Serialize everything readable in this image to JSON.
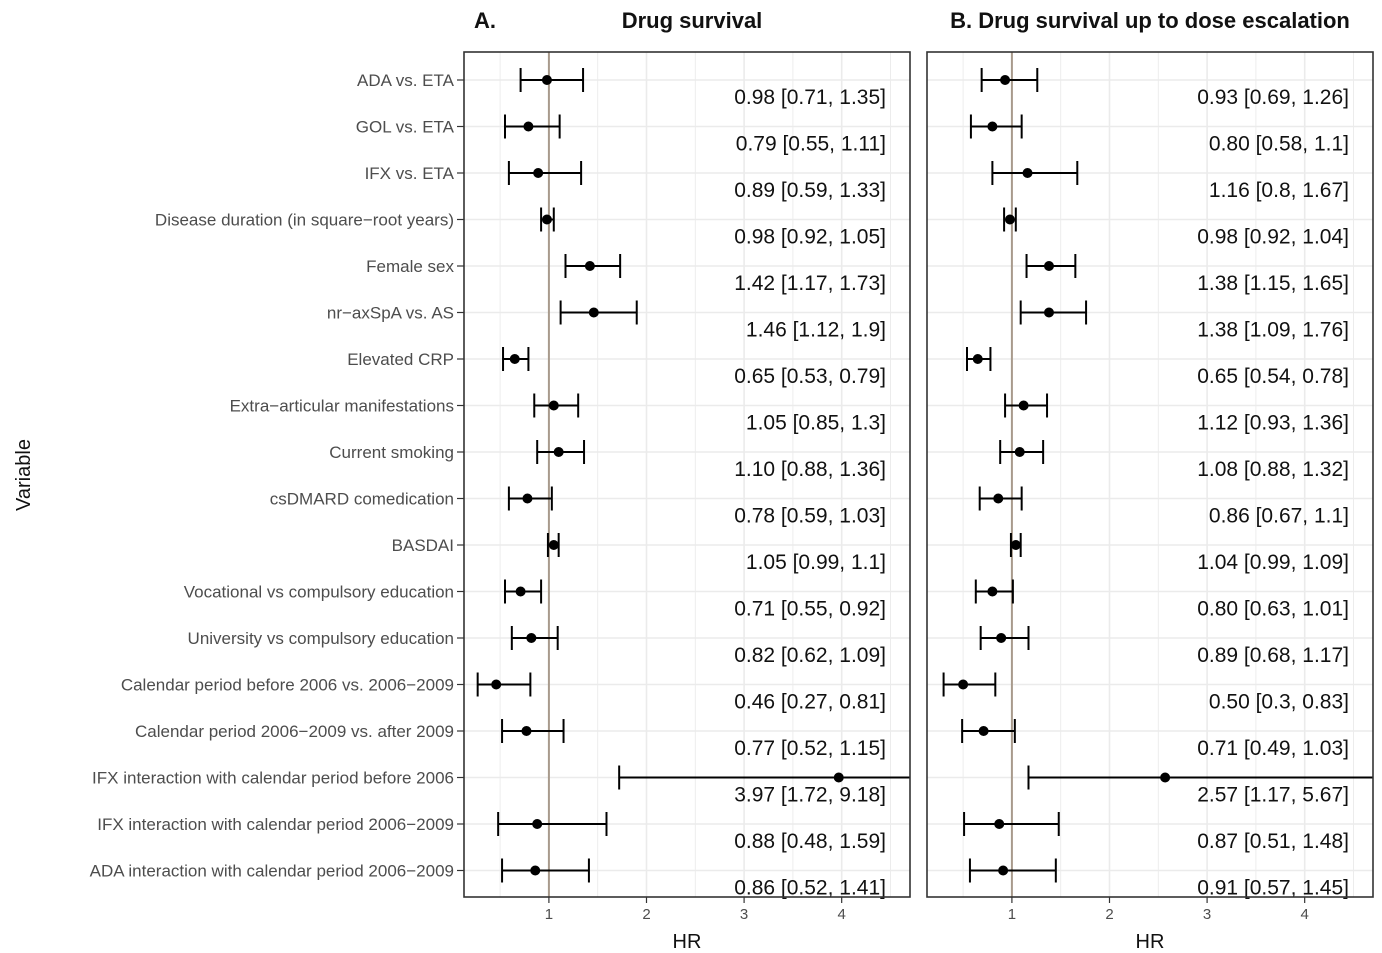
{
  "chart_data": {
    "type": "forest",
    "ylabel": "Variable",
    "reference_line": 1,
    "variables": [
      "ADA vs. ETA",
      "GOL vs. ETA",
      "IFX vs. ETA",
      "Disease duration (in square−root years)",
      "Female sex",
      "nr−axSpA vs. AS",
      "Elevated CRP",
      "Extra−articular manifestations",
      "Current smoking",
      "csDMARD comedication",
      "BASDAI",
      "Vocational vs compulsory education",
      "University vs compulsory education",
      "Calendar period before 2006 vs. 2006−2009",
      "Calendar period 2006−2009 vs. after 2009",
      "IFX interaction with calendar period before 2006",
      "IFX interaction with calendar period 2006−2009",
      "ADA interaction with calendar period 2006−2009"
    ],
    "panels": [
      {
        "letter": "A.",
        "title": "Drug survival",
        "xlabel": "HR",
        "xticks": [
          1,
          2,
          3,
          4
        ],
        "xlim": [
          0.13,
          4.7
        ],
        "hr": [
          0.98,
          0.79,
          0.89,
          0.98,
          1.42,
          1.46,
          0.65,
          1.05,
          1.1,
          0.78,
          1.05,
          0.71,
          0.82,
          0.46,
          0.77,
          3.97,
          0.88,
          0.86
        ],
        "lower": [
          0.71,
          0.55,
          0.59,
          0.92,
          1.17,
          1.12,
          0.53,
          0.85,
          0.88,
          0.59,
          0.99,
          0.55,
          0.62,
          0.27,
          0.52,
          1.72,
          0.48,
          0.52
        ],
        "upper": [
          1.35,
          1.11,
          1.33,
          1.05,
          1.73,
          1.9,
          0.79,
          1.3,
          1.36,
          1.03,
          1.1,
          0.92,
          1.09,
          0.81,
          1.15,
          9.18,
          1.59,
          1.41
        ],
        "labels": [
          "0.98 [0.71, 1.35]",
          "0.79 [0.55, 1.11]",
          "0.89 [0.59, 1.33]",
          "0.98 [0.92, 1.05]",
          "1.42 [1.17, 1.73]",
          "1.46 [1.12, 1.9]",
          "0.65 [0.53, 0.79]",
          "1.05 [0.85, 1.3]",
          "1.10 [0.88, 1.36]",
          "0.78 [0.59, 1.03]",
          "1.05 [0.99, 1.1]",
          "0.71 [0.55, 0.92]",
          "0.82 [0.62, 1.09]",
          "0.46 [0.27, 0.81]",
          "0.77 [0.52, 1.15]",
          "3.97 [1.72, 9.18]",
          "0.88 [0.48, 1.59]",
          "0.86 [0.52, 1.41]"
        ]
      },
      {
        "letter": "",
        "title": "B. Drug survival up to dose escalation",
        "xlabel": "HR",
        "xticks": [
          1,
          2,
          3,
          4
        ],
        "xlim": [
          0.13,
          4.7
        ],
        "hr": [
          0.93,
          0.8,
          1.16,
          0.98,
          1.38,
          1.38,
          0.65,
          1.12,
          1.08,
          0.86,
          1.04,
          0.8,
          0.89,
          0.5,
          0.71,
          2.57,
          0.87,
          0.91
        ],
        "lower": [
          0.69,
          0.58,
          0.8,
          0.92,
          1.15,
          1.09,
          0.54,
          0.93,
          0.88,
          0.67,
          0.99,
          0.63,
          0.68,
          0.3,
          0.49,
          1.17,
          0.51,
          0.57
        ],
        "upper": [
          1.26,
          1.1,
          1.67,
          1.04,
          1.65,
          1.76,
          0.78,
          1.36,
          1.32,
          1.1,
          1.09,
          1.01,
          1.17,
          0.83,
          1.03,
          5.67,
          1.48,
          1.45
        ],
        "labels": [
          "0.93 [0.69, 1.26]",
          "0.80 [0.58, 1.1]",
          "1.16 [0.8, 1.67]",
          "0.98 [0.92, 1.04]",
          "1.38 [1.15, 1.65]",
          "1.38 [1.09, 1.76]",
          "0.65 [0.54, 0.78]",
          "1.12 [0.93, 1.36]",
          "1.08 [0.88, 1.32]",
          "0.86 [0.67, 1.1]",
          "1.04 [0.99, 1.09]",
          "0.80 [0.63, 1.01]",
          "0.89 [0.68, 1.17]",
          "0.50 [0.3, 0.83]",
          "0.71 [0.49, 1.03]",
          "2.57 [1.17, 5.67]",
          "0.87 [0.51, 1.48]",
          "0.91 [0.57, 1.45]"
        ]
      }
    ],
    "colors": {
      "reference_line": "#a89a8c",
      "grid": "#ebebeb",
      "point": "#000000",
      "panel_border": "#333333"
    }
  }
}
